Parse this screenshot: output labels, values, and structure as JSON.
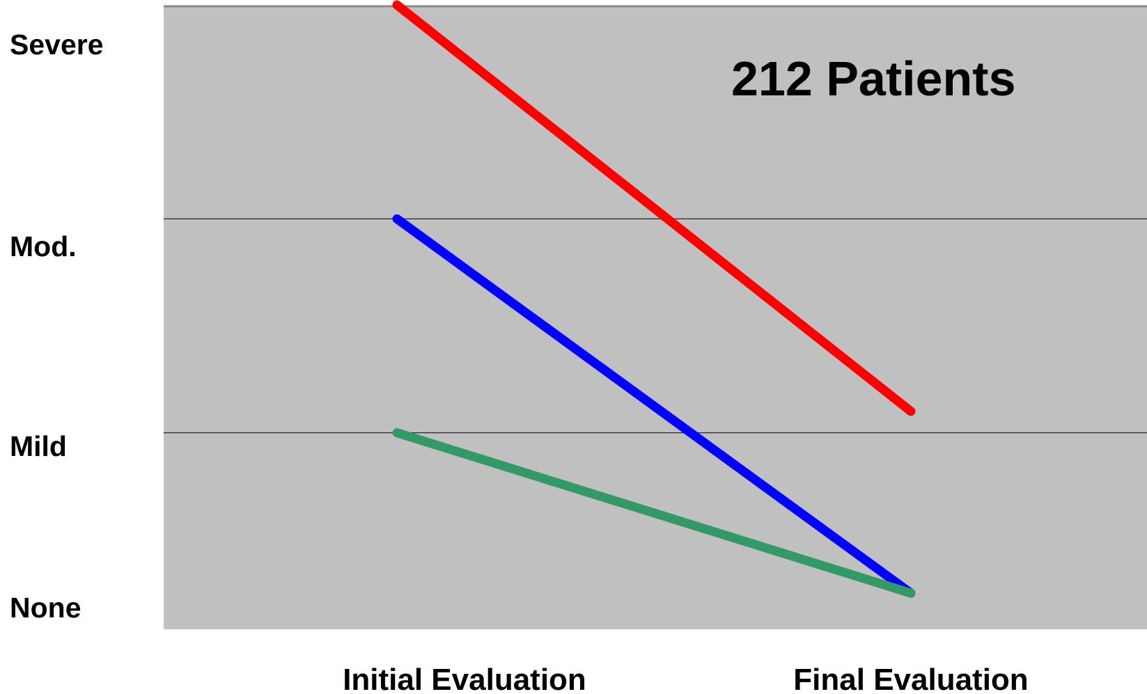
{
  "chart_data": {
    "type": "line",
    "x_categories": [
      "Initial Evaluation",
      "Final Evaluation"
    ],
    "y_categories": [
      "None",
      "Mild",
      "Mod.",
      "Severe"
    ],
    "annotation": "212 Patients",
    "ylim": [
      0,
      3
    ],
    "grid": true,
    "legend": "none",
    "plot_background": "#c0c0c0",
    "series": [
      {
        "color": "#ff0000",
        "values": [
          3.0,
          1.1
        ]
      },
      {
        "color": "#0000ff",
        "values": [
          2.0,
          0.25
        ]
      },
      {
        "color": "#339966",
        "values": [
          1.0,
          0.25
        ]
      }
    ]
  }
}
